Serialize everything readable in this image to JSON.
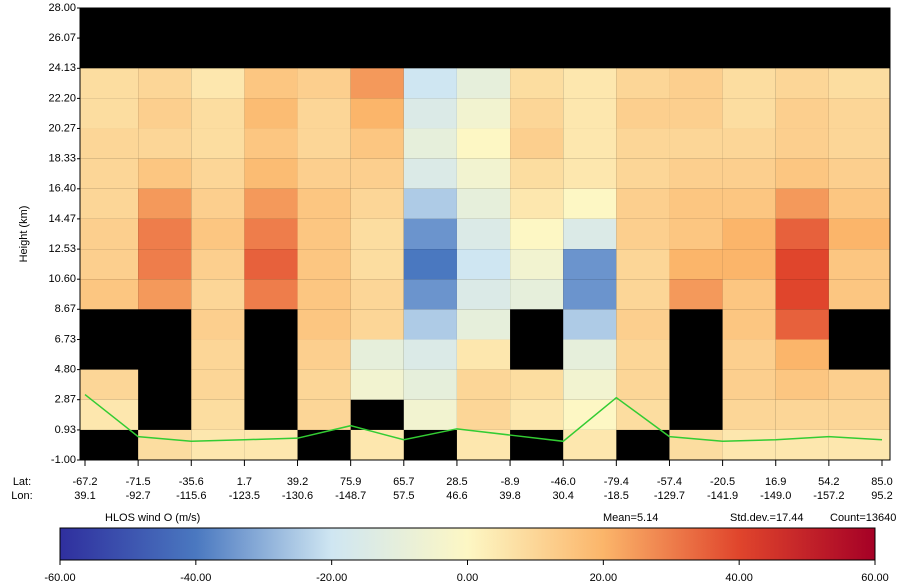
{
  "chart_data": {
    "type": "heatmap",
    "y_label": "Height (km)",
    "ylim": [
      -1,
      28
    ],
    "yticks": [
      {
        "value": 28,
        "label": "28.00"
      },
      {
        "value": 26.07,
        "label": "26.07"
      },
      {
        "value": 24.13,
        "label": "24.13"
      },
      {
        "value": 22.2,
        "label": "22.20"
      },
      {
        "value": 20.27,
        "label": "20.27"
      },
      {
        "value": 18.33,
        "label": "18.33"
      },
      {
        "value": 16.4,
        "label": "16.40"
      },
      {
        "value": 14.47,
        "label": "14.47"
      },
      {
        "value": 12.53,
        "label": "12.53"
      },
      {
        "value": 10.6,
        "label": "10.60"
      },
      {
        "value": 8.67,
        "label": "8.67"
      },
      {
        "value": 6.73,
        "label": "6.73"
      },
      {
        "value": 4.8,
        "label": "4.80"
      },
      {
        "value": 2.87,
        "label": "2.87"
      },
      {
        "value": 0.93,
        "label": "0.93"
      },
      {
        "value": -1,
        "label": "-1.00"
      }
    ],
    "lat_title": "Lat:",
    "lon_title": "Lon:",
    "categories": [
      "-67.2",
      "-71.5",
      "-35.6",
      "1.7",
      "39.2",
      "75.9",
      "65.7",
      "28.5",
      "-8.9",
      "-46.0",
      "-79.4",
      "-57.4",
      "-20.5",
      "16.9",
      "54.2",
      "85.0"
    ],
    "lon": [
      "39.1",
      "-92.7",
      "-115.6",
      "-123.5",
      "-130.6",
      "-148.7",
      "57.5",
      "46.6",
      "39.8",
      "30.4",
      "-18.5",
      "-129.7",
      "-141.9",
      "-149.0",
      "-157.2",
      "95.2"
    ],
    "z": [
      [
        null,
        null,
        null,
        null,
        null,
        null,
        null,
        null,
        null,
        null,
        null,
        null,
        null,
        null,
        null
      ],
      [
        null,
        null,
        null,
        null,
        null,
        null,
        null,
        null,
        null,
        null,
        null,
        null,
        null,
        null,
        null
      ],
      [
        8,
        10,
        5,
        15,
        12,
        25,
        -20,
        -10,
        8,
        5,
        10,
        12,
        8,
        10,
        8
      ],
      [
        8,
        12,
        8,
        18,
        10,
        20,
        -15,
        -5,
        10,
        5,
        12,
        12,
        8,
        12,
        10
      ],
      [
        10,
        10,
        8,
        15,
        10,
        15,
        -10,
        0,
        12,
        5,
        10,
        10,
        10,
        12,
        10
      ],
      [
        10,
        15,
        10,
        18,
        12,
        12,
        -15,
        -5,
        8,
        5,
        10,
        12,
        12,
        15,
        12
      ],
      [
        10,
        25,
        12,
        25,
        15,
        10,
        -25,
        -10,
        5,
        0,
        12,
        15,
        15,
        25,
        15
      ],
      [
        12,
        30,
        15,
        30,
        15,
        8,
        -35,
        -15,
        0,
        -15,
        12,
        15,
        20,
        35,
        20
      ],
      [
        12,
        30,
        12,
        35,
        15,
        8,
        -40,
        -20,
        -5,
        -35,
        10,
        20,
        20,
        40,
        15
      ],
      [
        15,
        25,
        10,
        30,
        15,
        10,
        -35,
        -15,
        -10,
        -35,
        10,
        25,
        15,
        40,
        15
      ],
      [
        null,
        null,
        12,
        null,
        15,
        10,
        -25,
        -10,
        null,
        -25,
        12,
        null,
        15,
        35,
        null
      ],
      [
        null,
        null,
        10,
        null,
        12,
        -10,
        -15,
        5,
        null,
        -10,
        10,
        null,
        12,
        20,
        null
      ],
      [
        10,
        null,
        10,
        null,
        10,
        -5,
        -10,
        10,
        8,
        -5,
        10,
        null,
        12,
        15,
        12
      ],
      [
        5,
        null,
        8,
        null,
        10,
        null,
        -5,
        10,
        5,
        0,
        8,
        null,
        10,
        10,
        10
      ],
      [
        null,
        8,
        5,
        5,
        null,
        5,
        null,
        5,
        null,
        5,
        null,
        8,
        5,
        5,
        5
      ]
    ],
    "series": [
      {
        "color": "#33cc33",
        "values": [
          3.2,
          0.5,
          0.2,
          0.3,
          0.4,
          1.2,
          0.3,
          1.0,
          0.6,
          0.2,
          3.0,
          0.5,
          0.2,
          0.3,
          0.5,
          0.3
        ]
      }
    ],
    "colorbar_label": "HLOS wind O (m/s)",
    "clim": [
      -60,
      60
    ],
    "colormap": [
      "#2f2f9e",
      "#4a78c0",
      "#cfe6f2",
      "#fdf7c4",
      "#fbb56a",
      "#e0452c",
      "#a50026"
    ],
    "cticks": [
      {
        "value": -60,
        "label": "-60.00"
      },
      {
        "value": -40,
        "label": "-40.00"
      },
      {
        "value": -20,
        "label": "-20.00"
      },
      {
        "value": 0,
        "label": "0.00"
      },
      {
        "value": 20,
        "label": "20.00"
      },
      {
        "value": 40,
        "label": "40.00"
      },
      {
        "value": 60,
        "label": "60.00"
      }
    ],
    "stats": [
      "Mean=5.14",
      "Std.dev.=17.44",
      "Count=13640"
    ]
  }
}
